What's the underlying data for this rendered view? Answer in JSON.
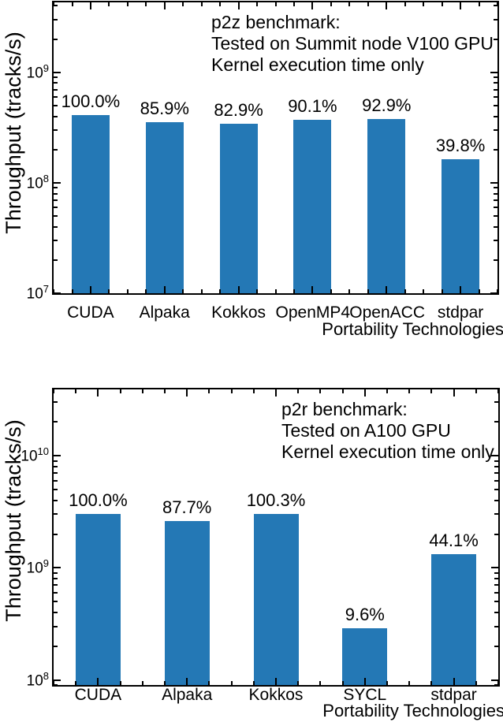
{
  "chart_data": [
    {
      "type": "bar",
      "yscale": "log",
      "title": "p2z benchmark",
      "annotation": {
        "lines": [
          "p2z benchmark:",
          "Tested on Summit node V100 GPU",
          "Kernel execution time only"
        ]
      },
      "ylabel": "Throughput (tracks/s)",
      "xlabel": "Portability Technologies",
      "categories": [
        "CUDA",
        "Alpaka",
        "Kokkos",
        "OpenMP4",
        "OpenACC",
        "stdpar"
      ],
      "values": [
        410000000.0,
        352000000.0,
        340000000.0,
        369000000.0,
        381000000.0,
        163000000.0
      ],
      "bar_labels": [
        "100.0%",
        "85.9%",
        "82.9%",
        "90.1%",
        "92.9%",
        "39.8%"
      ],
      "ylim": [
        10000000.0,
        4300000000.0
      ],
      "yticks": [
        {
          "mantissa": "10",
          "exponent": "7"
        },
        {
          "mantissa": "10",
          "exponent": "8"
        },
        {
          "mantissa": "10",
          "exponent": "9"
        }
      ],
      "bar_color": "#2478b5",
      "grid": false,
      "legend": "none"
    },
    {
      "type": "bar",
      "yscale": "log",
      "title": "p2r benchmark",
      "annotation": {
        "lines": [
          "p2r benchmark:",
          "Tested on A100 GPU",
          "Kernel execution time only"
        ]
      },
      "ylabel": "Throughput (tracks/s)",
      "xlabel": "Portability Technologies",
      "categories": [
        "CUDA",
        "Alpaka",
        "Kokkos",
        "SYCL",
        "stdpar"
      ],
      "values": [
        3000000000.0,
        2630000000.0,
        3010000000.0,
        288000000.0,
        1320000000.0
      ],
      "bar_labels": [
        "100.0%",
        "87.7%",
        "100.3%",
        "9.6%",
        "44.1%"
      ],
      "ylim": [
        90000000.0,
        39000000000.0
      ],
      "yticks": [
        {
          "mantissa": "10",
          "exponent": "8"
        },
        {
          "mantissa": "10",
          "exponent": "9"
        },
        {
          "mantissa": "10",
          "exponent": "10"
        }
      ],
      "bar_color": "#2478b5",
      "grid": false,
      "legend": "none"
    }
  ]
}
